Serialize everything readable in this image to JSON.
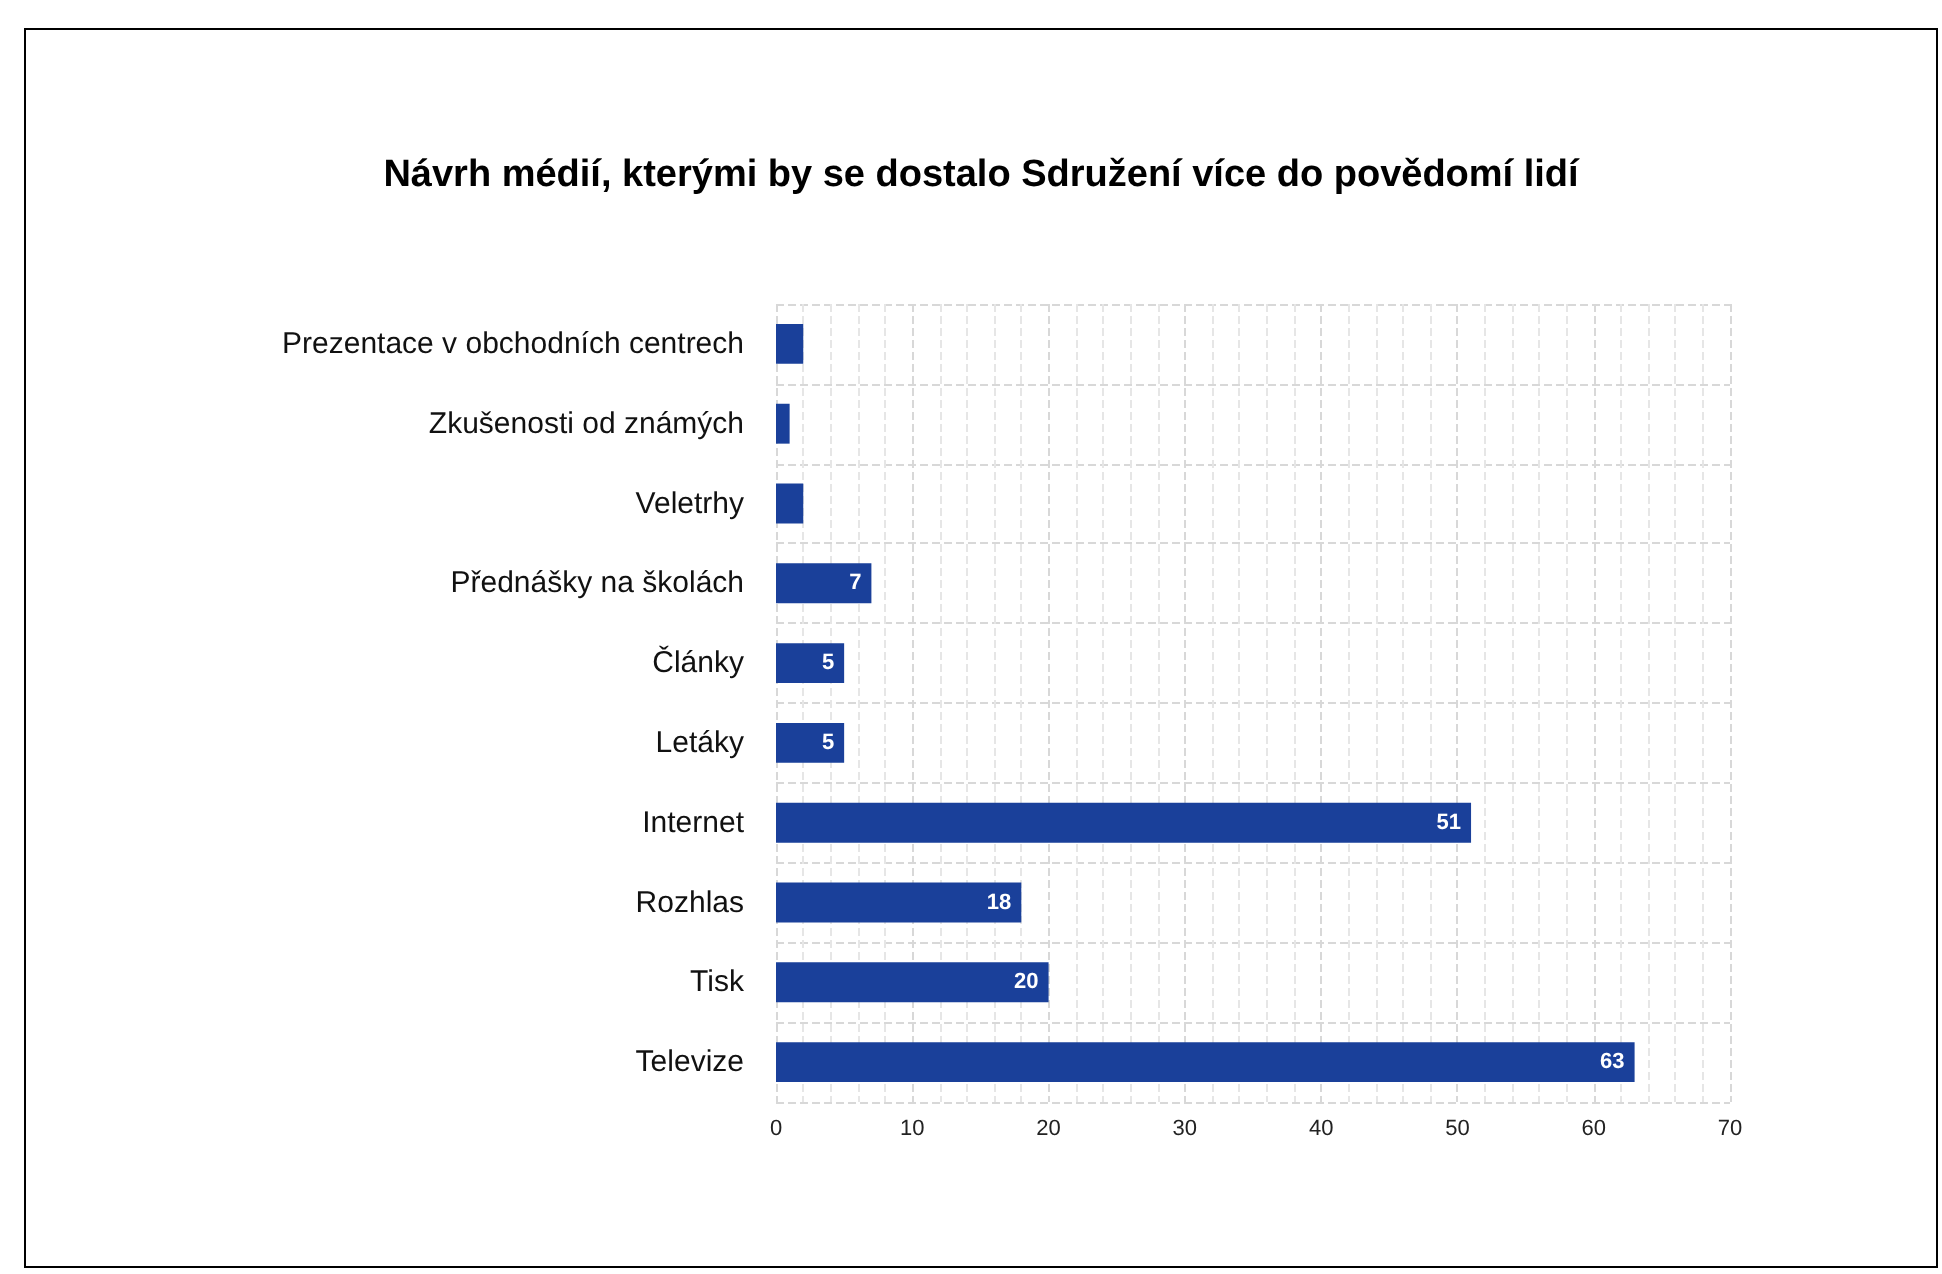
{
  "chart_data": {
    "type": "bar",
    "orientation": "horizontal",
    "title": "Návrh médií, kterými by se dostalo Sdružení více do povědomí lidí",
    "categories": [
      "Prezentace v obchodních centrech",
      "Zkušenosti od známých",
      "Veletrhy",
      "Přednášky na školách",
      "Články",
      "Letáky",
      "Internet",
      "Rozhlas",
      "Tisk",
      "Televize"
    ],
    "values": [
      2,
      1,
      2,
      7,
      5,
      5,
      51,
      18,
      20,
      63
    ],
    "value_labels": [
      null,
      null,
      null,
      "7",
      "5",
      "5",
      "51",
      "18",
      "20",
      "63"
    ],
    "color": "#1a409a",
    "xlim": [
      0,
      70
    ],
    "xticks": [
      0,
      10,
      20,
      30,
      40,
      50,
      60,
      70
    ],
    "grid": true
  }
}
